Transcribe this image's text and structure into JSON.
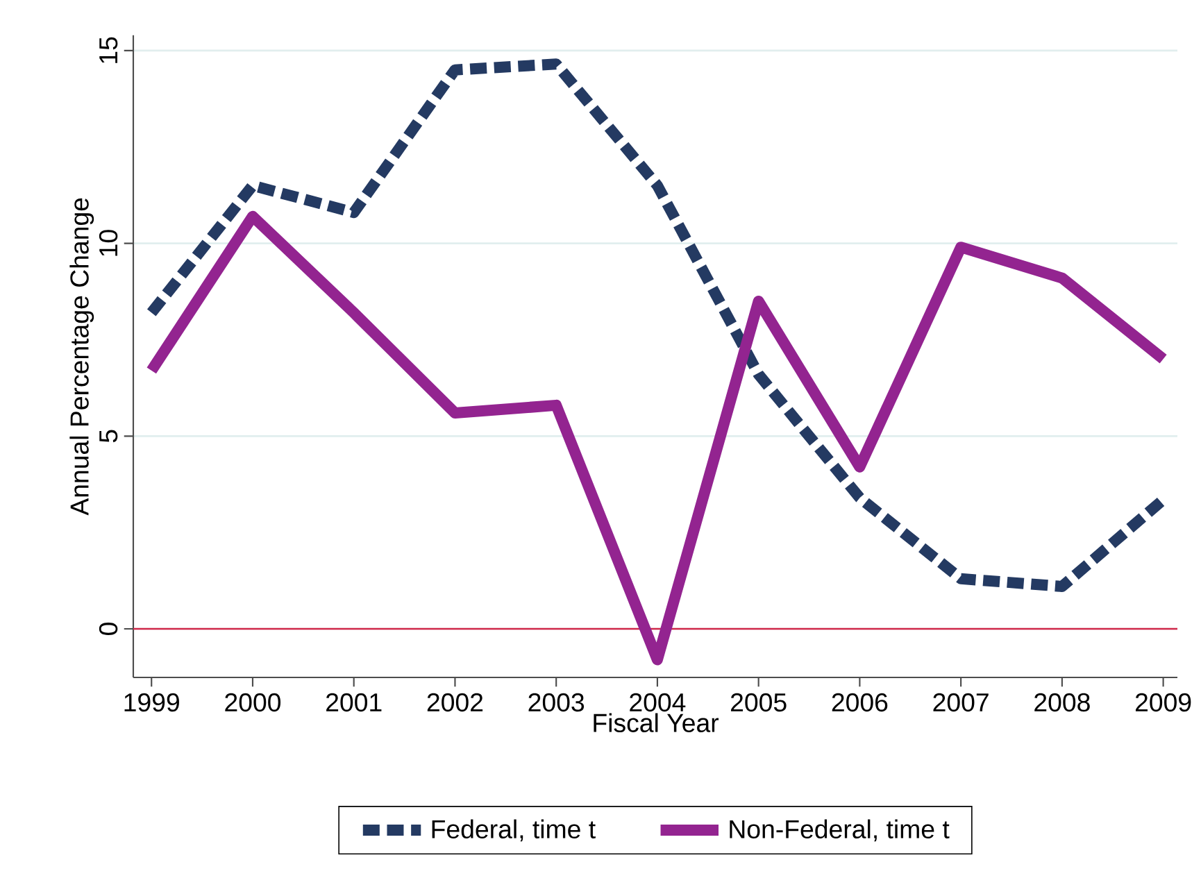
{
  "chart_data": {
    "type": "line",
    "xlabel": "Fiscal Year",
    "ylabel": "Annual Percentage Change",
    "x": [
      1999,
      2000,
      2001,
      2002,
      2003,
      2004,
      2005,
      2006,
      2007,
      2008,
      2009
    ],
    "series": [
      {
        "name": "Federal, time t",
        "color": "#243a62",
        "line_style": "dashed",
        "values": [
          8.2,
          11.5,
          10.8,
          14.5,
          14.65,
          11.5,
          6.6,
          3.4,
          1.3,
          1.1,
          3.35
        ]
      },
      {
        "name": "Non-Federal, time t",
        "color": "#932490",
        "line_style": "solid",
        "values": [
          6.7,
          10.7,
          8.2,
          5.6,
          5.8,
          -0.8,
          8.5,
          4.2,
          9.9,
          9.1,
          7.0
        ]
      }
    ],
    "xlim": [
      1998.82,
      2009.14
    ],
    "ylim": [
      -1.26,
      15.4
    ],
    "xticks": [
      1999,
      2000,
      2001,
      2002,
      2003,
      2004,
      2005,
      2006,
      2007,
      2008,
      2009
    ],
    "yticks": [
      0,
      5,
      10,
      15
    ],
    "ref_lines": [
      {
        "axis": "y",
        "value": 0,
        "color": "#d0284a"
      }
    ],
    "grid": "y",
    "legend": "bottom",
    "marker": "none"
  }
}
